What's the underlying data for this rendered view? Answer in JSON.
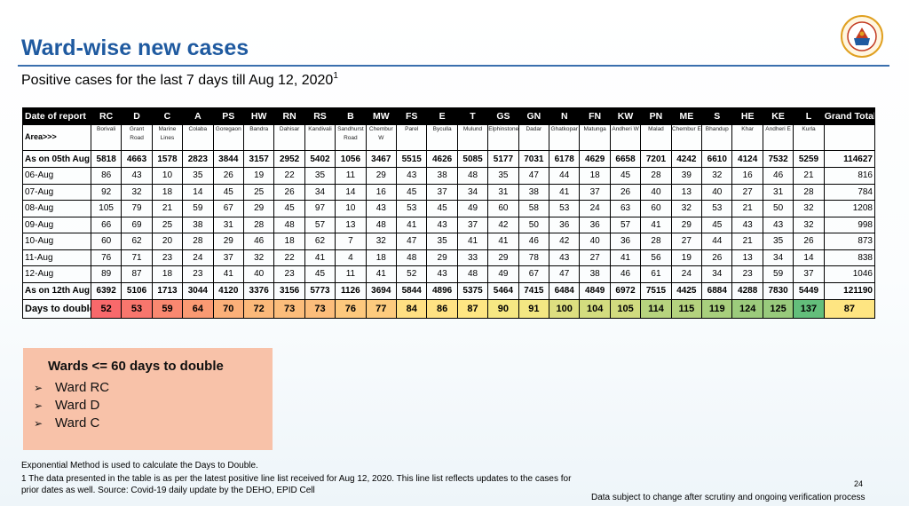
{
  "slide": {
    "title": "Ward-wise new cases",
    "subtitle": "Positive cases for the last 7 days till Aug 12, 2020",
    "subtitle_sup": "1"
  },
  "table": {
    "corner_label": "Date of report",
    "area_label": "Area>>>",
    "grand_total_label": "Grand Total",
    "wards": [
      {
        "code": "RC",
        "area": "Borivali"
      },
      {
        "code": "D",
        "area": "Grant Road"
      },
      {
        "code": "C",
        "area": "Marine Lines"
      },
      {
        "code": "A",
        "area": "Colaba"
      },
      {
        "code": "PS",
        "area": "Goregaon"
      },
      {
        "code": "HW",
        "area": "Bandra"
      },
      {
        "code": "RN",
        "area": "Dahisar"
      },
      {
        "code": "RS",
        "area": "Kandivali"
      },
      {
        "code": "B",
        "area": "Sandhurst Road"
      },
      {
        "code": "MW",
        "area": "Chembur W"
      },
      {
        "code": "FS",
        "area": "Parel"
      },
      {
        "code": "E",
        "area": "Byculla"
      },
      {
        "code": "T",
        "area": "Mulund"
      },
      {
        "code": "GS",
        "area": "Elphinstone"
      },
      {
        "code": "GN",
        "area": "Dadar"
      },
      {
        "code": "N",
        "area": "Ghatkopar"
      },
      {
        "code": "FN",
        "area": "Matunga"
      },
      {
        "code": "KW",
        "area": "Andheri W"
      },
      {
        "code": "PN",
        "area": "Malad"
      },
      {
        "code": "ME",
        "area": "Chembur E"
      },
      {
        "code": "S",
        "area": "Bhandup"
      },
      {
        "code": "HE",
        "area": "Khar"
      },
      {
        "code": "KE",
        "area": "Andheri E"
      },
      {
        "code": "L",
        "area": "Kurla"
      }
    ],
    "rows": [
      {
        "label": "As on 05th Aug",
        "kind": "bold",
        "values": [
          "5818",
          "4663",
          "1578",
          "2823",
          "3844",
          "3157",
          "2952",
          "5402",
          "1056",
          "3467",
          "5515",
          "4626",
          "5085",
          "5177",
          "7031",
          "6178",
          "4629",
          "6658",
          "7201",
          "4242",
          "6610",
          "4124",
          "7532",
          "5259"
        ],
        "total": "114627"
      },
      {
        "label": "06-Aug",
        "kind": "daily",
        "values": [
          "86",
          "43",
          "10",
          "35",
          "26",
          "19",
          "22",
          "35",
          "11",
          "29",
          "43",
          "38",
          "48",
          "35",
          "47",
          "44",
          "18",
          "45",
          "28",
          "39",
          "32",
          "16",
          "46",
          "21"
        ],
        "total": "816"
      },
      {
        "label": "07-Aug",
        "kind": "daily",
        "values": [
          "92",
          "32",
          "18",
          "14",
          "45",
          "25",
          "26",
          "34",
          "14",
          "16",
          "45",
          "37",
          "34",
          "31",
          "38",
          "41",
          "37",
          "26",
          "40",
          "13",
          "40",
          "27",
          "31",
          "28"
        ],
        "total": "784"
      },
      {
        "label": "08-Aug",
        "kind": "daily",
        "values": [
          "105",
          "79",
          "21",
          "59",
          "67",
          "29",
          "45",
          "97",
          "10",
          "43",
          "53",
          "45",
          "49",
          "60",
          "58",
          "53",
          "24",
          "63",
          "60",
          "32",
          "53",
          "21",
          "50",
          "32"
        ],
        "total": "1208"
      },
      {
        "label": "09-Aug",
        "kind": "daily",
        "values": [
          "66",
          "69",
          "25",
          "38",
          "31",
          "28",
          "48",
          "57",
          "13",
          "48",
          "41",
          "43",
          "37",
          "42",
          "50",
          "36",
          "36",
          "57",
          "41",
          "29",
          "45",
          "43",
          "43",
          "32"
        ],
        "total": "998"
      },
      {
        "label": "10-Aug",
        "kind": "daily",
        "values": [
          "60",
          "62",
          "20",
          "28",
          "29",
          "46",
          "18",
          "62",
          "7",
          "32",
          "47",
          "35",
          "41",
          "41",
          "46",
          "42",
          "40",
          "36",
          "28",
          "27",
          "44",
          "21",
          "35",
          "26"
        ],
        "total": "873"
      },
      {
        "label": "11-Aug",
        "kind": "daily",
        "values": [
          "76",
          "71",
          "23",
          "24",
          "37",
          "32",
          "22",
          "41",
          "4",
          "18",
          "48",
          "29",
          "33",
          "29",
          "78",
          "43",
          "27",
          "41",
          "56",
          "19",
          "26",
          "13",
          "34",
          "14"
        ],
        "total": "838"
      },
      {
        "label": "12-Aug",
        "kind": "daily",
        "values": [
          "89",
          "87",
          "18",
          "23",
          "41",
          "40",
          "23",
          "45",
          "11",
          "41",
          "52",
          "43",
          "48",
          "49",
          "67",
          "47",
          "38",
          "46",
          "61",
          "24",
          "34",
          "23",
          "59",
          "37"
        ],
        "total": "1046"
      },
      {
        "label": "As on 12th Aug",
        "kind": "bold",
        "values": [
          "6392",
          "5106",
          "1713",
          "3044",
          "4120",
          "3376",
          "3156",
          "5773",
          "1126",
          "3694",
          "5844",
          "4896",
          "5375",
          "5464",
          "7415",
          "6484",
          "4849",
          "6972",
          "7515",
          "4425",
          "6884",
          "4288",
          "7830",
          "5449"
        ],
        "total": "121190"
      }
    ],
    "days_to_double": {
      "label": "Days to double",
      "values": [
        "52",
        "53",
        "59",
        "64",
        "70",
        "72",
        "73",
        "73",
        "76",
        "77",
        "84",
        "86",
        "87",
        "90",
        "91",
        "100",
        "104",
        "105",
        "114",
        "115",
        "119",
        "124",
        "125",
        "137"
      ],
      "total": "87",
      "colors": [
        "#f8696b",
        "#f8766d",
        "#f98870",
        "#fa9a73",
        "#fbb079",
        "#fcb97a",
        "#fcbd7b",
        "#fcbd7b",
        "#fdc87d",
        "#fdcb7e",
        "#ffe083",
        "#ffe283",
        "#fee683",
        "#f6e883",
        "#f3e783",
        "#ddde80",
        "#d3dc7f",
        "#d1db7f",
        "#b7d37e",
        "#b4d27e",
        "#a8cf7d",
        "#9ccb7c",
        "#98ca7c",
        "#63be7b"
      ],
      "total_color": "#fee582"
    }
  },
  "wards_box": {
    "title": "Wards <= 60 days to double",
    "items": [
      "Ward RC",
      "Ward D",
      "Ward C"
    ],
    "bullet": "➢"
  },
  "footnotes": {
    "method": "Exponential Method is used to calculate the Days to Double.",
    "note": "1 The data presented in the table is as per the latest positive line list received for Aug 12, 2020. This line list reflects updates to the cases for prior dates as well. Source: Covid-19 daily update by the DEHO, EPID Cell",
    "page_number": "24",
    "disclaimer": "Data subject to change after scrutiny and ongoing verification process"
  }
}
